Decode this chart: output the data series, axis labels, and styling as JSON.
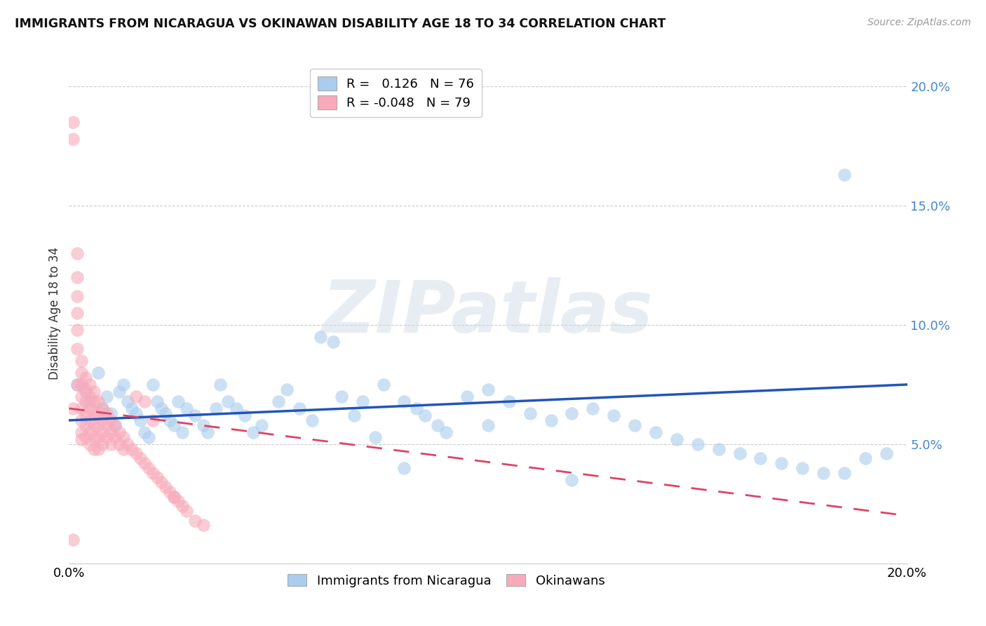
{
  "title": "IMMIGRANTS FROM NICARAGUA VS OKINAWAN DISABILITY AGE 18 TO 34 CORRELATION CHART",
  "source": "Source: ZipAtlas.com",
  "ylabel": "Disability Age 18 to 34",
  "xlim": [
    0.0,
    0.2
  ],
  "ylim": [
    0.0,
    0.21
  ],
  "yticks": [
    0.05,
    0.1,
    0.15,
    0.2
  ],
  "ytick_labels": [
    "5.0%",
    "10.0%",
    "15.0%",
    "20.0%"
  ],
  "xticks": [
    0.0,
    0.05,
    0.1,
    0.15,
    0.2
  ],
  "xtick_labels": [
    "0.0%",
    "",
    "",
    "",
    "20.0%"
  ],
  "blue_R": 0.126,
  "blue_N": 76,
  "pink_R": -0.048,
  "pink_N": 79,
  "blue_color": "#aaccee",
  "pink_color": "#f8aabb",
  "blue_line_color": "#2255bb",
  "pink_line_color": "#dd4466",
  "watermark": "ZIPatlas",
  "legend_blue_label": "Immigrants from Nicaragua",
  "legend_pink_label": "Okinawans",
  "blue_line_x0": 0.0,
  "blue_line_y0": 0.06,
  "blue_line_x1": 0.2,
  "blue_line_y1": 0.075,
  "pink_line_x0": 0.0,
  "pink_line_y0": 0.065,
  "pink_line_x1": 0.2,
  "pink_line_y1": 0.02,
  "blue_x": [
    0.002,
    0.004,
    0.005,
    0.007,
    0.008,
    0.009,
    0.01,
    0.011,
    0.012,
    0.013,
    0.014,
    0.015,
    0.016,
    0.017,
    0.018,
    0.019,
    0.02,
    0.021,
    0.022,
    0.023,
    0.024,
    0.025,
    0.026,
    0.027,
    0.028,
    0.03,
    0.032,
    0.033,
    0.035,
    0.036,
    0.038,
    0.04,
    0.042,
    0.044,
    0.046,
    0.05,
    0.052,
    0.055,
    0.058,
    0.06,
    0.063,
    0.065,
    0.068,
    0.07,
    0.073,
    0.075,
    0.08,
    0.083,
    0.085,
    0.088,
    0.09,
    0.095,
    0.1,
    0.105,
    0.11,
    0.115,
    0.12,
    0.125,
    0.13,
    0.135,
    0.14,
    0.145,
    0.15,
    0.155,
    0.16,
    0.165,
    0.17,
    0.175,
    0.18,
    0.185,
    0.19,
    0.195,
    0.08,
    0.1,
    0.12,
    0.185
  ],
  "blue_y": [
    0.075,
    0.072,
    0.068,
    0.08,
    0.065,
    0.07,
    0.063,
    0.058,
    0.072,
    0.075,
    0.068,
    0.065,
    0.063,
    0.06,
    0.055,
    0.053,
    0.075,
    0.068,
    0.065,
    0.063,
    0.06,
    0.058,
    0.068,
    0.055,
    0.065,
    0.062,
    0.058,
    0.055,
    0.065,
    0.075,
    0.068,
    0.065,
    0.062,
    0.055,
    0.058,
    0.068,
    0.073,
    0.065,
    0.06,
    0.095,
    0.093,
    0.07,
    0.062,
    0.068,
    0.053,
    0.075,
    0.068,
    0.065,
    0.062,
    0.058,
    0.055,
    0.07,
    0.073,
    0.068,
    0.063,
    0.06,
    0.063,
    0.065,
    0.062,
    0.058,
    0.055,
    0.052,
    0.05,
    0.048,
    0.046,
    0.044,
    0.042,
    0.04,
    0.038,
    0.038,
    0.044,
    0.046,
    0.04,
    0.058,
    0.035,
    0.163
  ],
  "pink_x": [
    0.001,
    0.001,
    0.001,
    0.002,
    0.002,
    0.002,
    0.002,
    0.002,
    0.002,
    0.002,
    0.003,
    0.003,
    0.003,
    0.003,
    0.003,
    0.003,
    0.003,
    0.003,
    0.004,
    0.004,
    0.004,
    0.004,
    0.004,
    0.004,
    0.005,
    0.005,
    0.005,
    0.005,
    0.005,
    0.005,
    0.006,
    0.006,
    0.006,
    0.006,
    0.006,
    0.006,
    0.007,
    0.007,
    0.007,
    0.007,
    0.007,
    0.008,
    0.008,
    0.008,
    0.008,
    0.009,
    0.009,
    0.009,
    0.01,
    0.01,
    0.01,
    0.011,
    0.011,
    0.012,
    0.012,
    0.013,
    0.013,
    0.014,
    0.015,
    0.016,
    0.017,
    0.018,
    0.019,
    0.02,
    0.021,
    0.022,
    0.023,
    0.024,
    0.025,
    0.026,
    0.027,
    0.028,
    0.03,
    0.032,
    0.016,
    0.018,
    0.02,
    0.025,
    0.001
  ],
  "pink_y": [
    0.185,
    0.178,
    0.065,
    0.13,
    0.12,
    0.112,
    0.105,
    0.098,
    0.09,
    0.075,
    0.085,
    0.08,
    0.075,
    0.07,
    0.065,
    0.06,
    0.055,
    0.052,
    0.078,
    0.073,
    0.068,
    0.063,
    0.058,
    0.053,
    0.075,
    0.07,
    0.065,
    0.06,
    0.055,
    0.05,
    0.072,
    0.068,
    0.063,
    0.058,
    0.053,
    0.048,
    0.068,
    0.063,
    0.058,
    0.053,
    0.048,
    0.065,
    0.06,
    0.055,
    0.05,
    0.063,
    0.058,
    0.053,
    0.06,
    0.055,
    0.05,
    0.058,
    0.053,
    0.055,
    0.05,
    0.053,
    0.048,
    0.05,
    0.048,
    0.046,
    0.044,
    0.042,
    0.04,
    0.038,
    0.036,
    0.034,
    0.032,
    0.03,
    0.028,
    0.026,
    0.024,
    0.022,
    0.018,
    0.016,
    0.07,
    0.068,
    0.06,
    0.028,
    0.01
  ]
}
